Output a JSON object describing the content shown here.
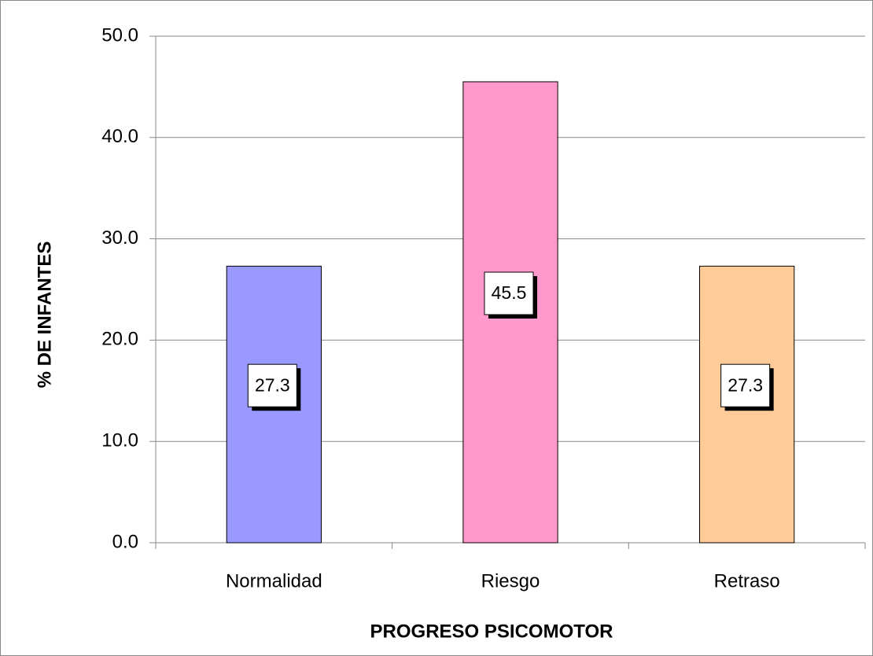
{
  "chart_data": {
    "type": "bar",
    "xlabel": "PROGRESO PSICOMOTOR",
    "ylabel": "% DE INFANTES",
    "categories": [
      "Normalidad",
      "Riesgo",
      "Retraso"
    ],
    "values": [
      27.3,
      45.5,
      27.3
    ],
    "colors": [
      "#9999ff",
      "#ff99cc",
      "#ffcc99"
    ],
    "ylim": [
      0,
      50
    ],
    "yticks": [
      {
        "value": 0,
        "label": "0.0"
      },
      {
        "value": 10,
        "label": "10.0"
      },
      {
        "value": 20,
        "label": "20.0"
      },
      {
        "value": 30,
        "label": "30.0"
      },
      {
        "value": 40,
        "label": "40.0"
      },
      {
        "value": 50,
        "label": "50.0"
      }
    ],
    "grid": true
  }
}
